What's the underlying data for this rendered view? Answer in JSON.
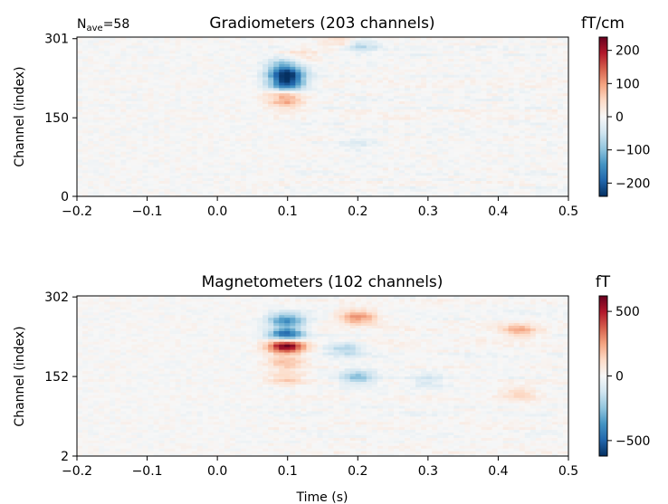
{
  "chart_data": [
    {
      "type": "heatmap",
      "title": "Gradiometers (203 channels)",
      "annotation": {
        "prefix": "N",
        "subscript": "ave",
        "suffix": "=58"
      },
      "xlabel": "",
      "ylabel": "Channel (index)",
      "xlim": [
        -0.2,
        0.5
      ],
      "xticks": [
        "−0.2",
        "−0.1",
        "0.0",
        "0.1",
        "0.2",
        "0.3",
        "0.4",
        "0.5"
      ],
      "xtick_values": [
        -0.2,
        -0.1,
        0.0,
        0.1,
        0.2,
        0.3,
        0.4,
        0.5
      ],
      "ylim": [
        0,
        304
      ],
      "yticks": [
        "0",
        "150",
        "301"
      ],
      "ytick_values": [
        0,
        150,
        301
      ],
      "colorbar": {
        "unit": "fT/cm",
        "range": [
          -240,
          240
        ],
        "ticks": [
          "−200",
          "−100",
          "0",
          "100",
          "200"
        ],
        "tick_values": [
          -200,
          -100,
          0,
          100,
          200
        ],
        "colormap": "RdBu_r"
      },
      "features": [
        {
          "t": 0.098,
          "ch": 235,
          "v": -230,
          "note": "dark band"
        },
        {
          "t": 0.098,
          "ch": 215,
          "v": -210
        },
        {
          "t": 0.095,
          "ch": 255,
          "v": -80
        },
        {
          "t": 0.098,
          "ch": 180,
          "v": 70
        },
        {
          "t": 0.095,
          "ch": 195,
          "v": 60
        },
        {
          "t": 0.12,
          "ch": 270,
          "v": 40
        },
        {
          "t": 0.18,
          "ch": 295,
          "v": 60
        },
        {
          "t": 0.2,
          "ch": 290,
          "v": -80
        },
        {
          "t": 0.2,
          "ch": 100,
          "v": -30
        }
      ]
    },
    {
      "type": "heatmap",
      "title": "Magnetometers (102 channels)",
      "xlabel": "Time (s)",
      "ylabel": "Channel (index)",
      "xlim": [
        -0.2,
        0.5
      ],
      "xticks": [
        "−0.2",
        "−0.1",
        "0.0",
        "0.1",
        "0.2",
        "0.3",
        "0.4",
        "0.5"
      ],
      "xtick_values": [
        -0.2,
        -0.1,
        0.0,
        0.1,
        0.2,
        0.3,
        0.4,
        0.5
      ],
      "ylim": [
        2,
        304
      ],
      "yticks": [
        "2",
        "152",
        "302"
      ],
      "ytick_values": [
        2,
        152,
        302
      ],
      "colorbar": {
        "unit": "fT",
        "range": [
          -620,
          620
        ],
        "ticks": [
          "−500",
          "0",
          "500"
        ],
        "tick_values": [
          -500,
          0,
          500
        ],
        "colormap": "RdBu_r"
      },
      "features": [
        {
          "t": 0.098,
          "ch": 210,
          "v": 620,
          "note": "dark red blob"
        },
        {
          "t": 0.098,
          "ch": 232,
          "v": -500
        },
        {
          "t": 0.098,
          "ch": 258,
          "v": -400
        },
        {
          "t": 0.098,
          "ch": 180,
          "v": 200
        },
        {
          "t": 0.098,
          "ch": 150,
          "v": 150
        },
        {
          "t": 0.2,
          "ch": 265,
          "v": 300
        },
        {
          "t": 0.18,
          "ch": 205,
          "v": -200
        },
        {
          "t": 0.2,
          "ch": 152,
          "v": -250
        },
        {
          "t": 0.3,
          "ch": 145,
          "v": -120
        },
        {
          "t": 0.43,
          "ch": 240,
          "v": 200
        },
        {
          "t": 0.43,
          "ch": 120,
          "v": 120
        }
      ]
    }
  ]
}
